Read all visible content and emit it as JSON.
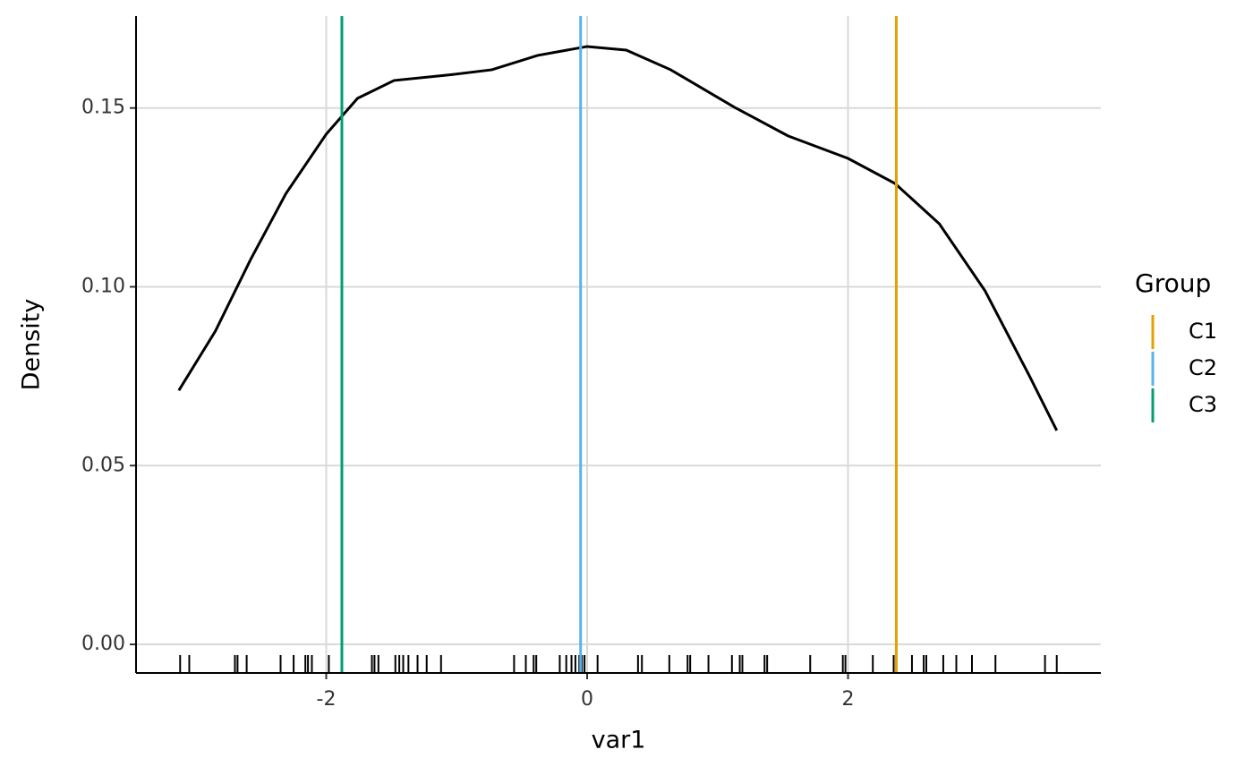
{
  "chart_data": {
    "type": "density",
    "xlabel": "var1",
    "ylabel": "Density",
    "xlim": [
      -3.458,
      3.938
    ],
    "ylim": [
      -0.008,
      0.1757
    ],
    "xticks": [
      -2,
      0,
      2
    ],
    "yticks": [
      {
        "value": 0,
        "label": "0.00"
      },
      {
        "value": 0.05,
        "label": "0.05"
      },
      {
        "value": 0.1,
        "label": "0.10"
      },
      {
        "value": 0.15,
        "label": "0.15"
      }
    ],
    "grid": true,
    "curve": {
      "color": "#000000",
      "x": [
        -3.13,
        -2.85,
        -2.58,
        -2.31,
        -2.0,
        -1.76,
        -1.48,
        -1.07,
        -0.73,
        -0.38,
        0,
        0.3,
        0.64,
        1.13,
        1.54,
        2.0,
        2.36,
        2.7,
        3.05,
        3.39,
        3.6
      ],
      "values": [
        0.071,
        0.0876,
        0.1076,
        0.126,
        0.1427,
        0.1527,
        0.1577,
        0.1592,
        0.1607,
        0.1647,
        0.1672,
        0.1662,
        0.1607,
        0.1502,
        0.1422,
        0.1359,
        0.1289,
        0.1176,
        0.0989,
        0.0751,
        0.0598
      ]
    },
    "rug": [
      -3.12,
      -3.05,
      -2.7,
      -2.68,
      -2.61,
      -2.35,
      -2.25,
      -2.16,
      -2.14,
      -2.11,
      -1.98,
      -1.65,
      -1.63,
      -1.6,
      -1.47,
      -1.44,
      -1.41,
      -1.37,
      -1.3,
      -1.23,
      -1.12,
      -0.56,
      -0.47,
      -0.41,
      -0.39,
      -0.21,
      -0.16,
      -0.12,
      -0.09,
      -0.06,
      -0.04,
      -0.02,
      0.08,
      0.39,
      0.42,
      0.63,
      0.77,
      0.79,
      0.93,
      1.11,
      1.17,
      1.19,
      1.36,
      1.38,
      1.71,
      1.96,
      1.98,
      2.19,
      2.35,
      2.37,
      2.49,
      2.58,
      2.6,
      2.73,
      2.83,
      2.95,
      3.13,
      3.51,
      3.6
    ],
    "legend_title": "Group",
    "series": [
      {
        "name": "C1",
        "color": "#E69F00",
        "x": 2.37
      },
      {
        "name": "C2",
        "color": "#56B4E9",
        "x": -0.05
      },
      {
        "name": "C3",
        "color": "#009E73",
        "x": -1.88
      }
    ]
  }
}
